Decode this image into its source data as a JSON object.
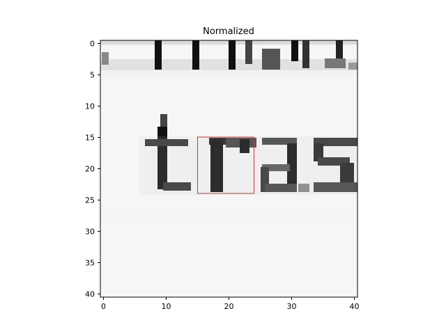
{
  "figure": {
    "title": "Normalized",
    "x_ticks": [
      "0",
      "10",
      "20",
      "30",
      "40"
    ],
    "y_ticks": [
      "0",
      "5",
      "10",
      "15",
      "20",
      "25",
      "30",
      "35",
      "40"
    ],
    "colors": {
      "box": "#e8272a",
      "ink": "#111111",
      "paper": "#f7f7f7"
    }
  }
}
